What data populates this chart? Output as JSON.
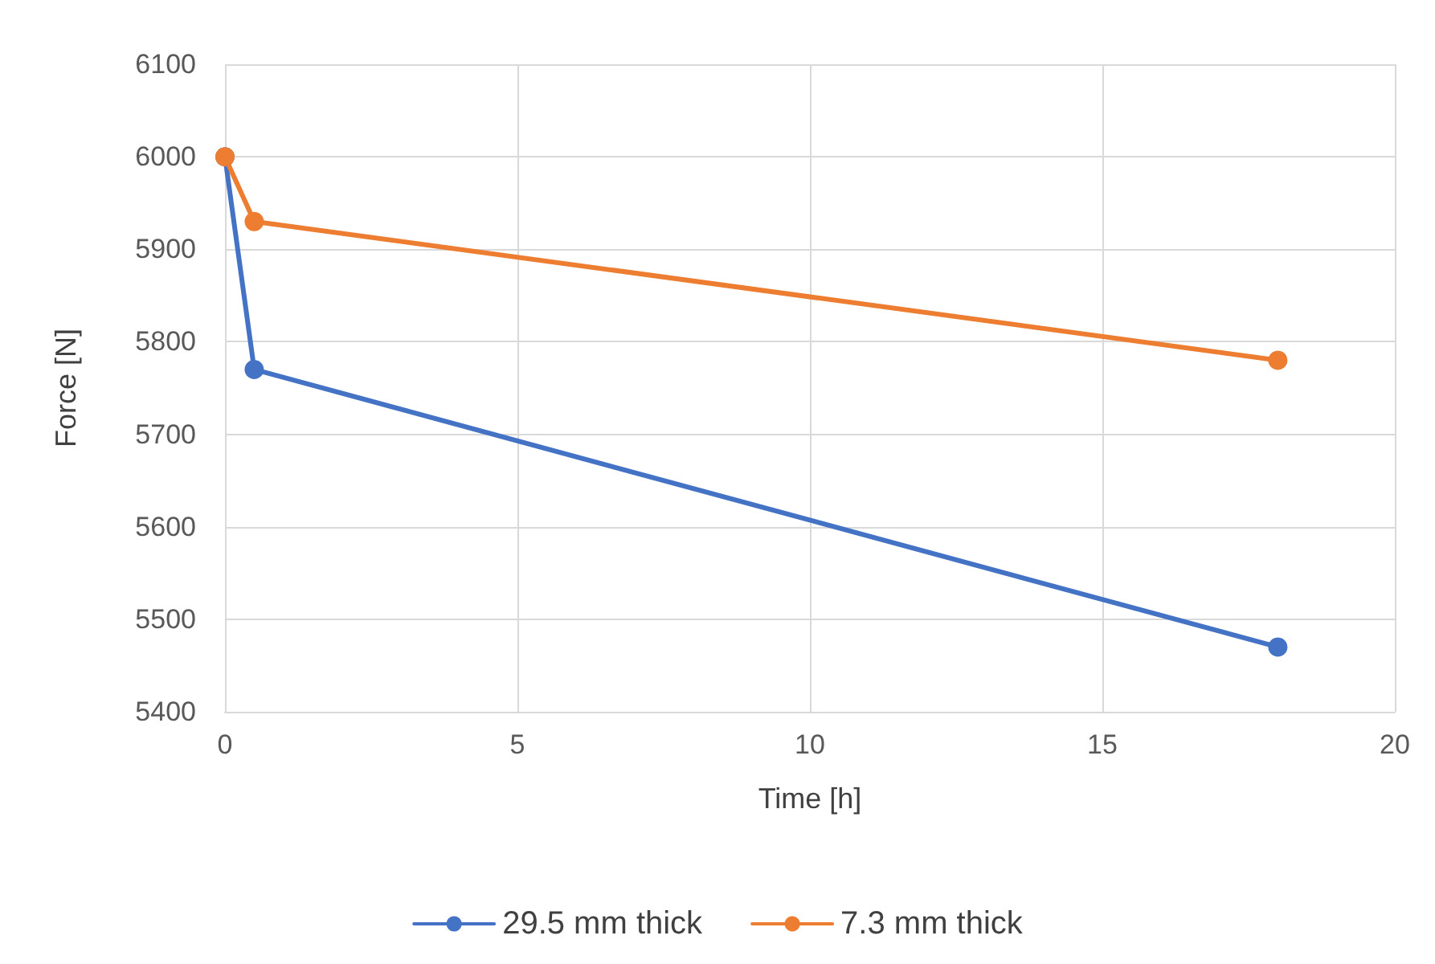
{
  "chart_data": {
    "type": "line",
    "xlabel": "Time [h]",
    "ylabel": "Force [N]",
    "series": [
      {
        "name": "29.5 mm thick",
        "color": "#4472c4",
        "x": [
          0,
          0.5,
          18
        ],
        "values": [
          6000,
          5770,
          5470
        ]
      },
      {
        "name": "7.3 mm thick",
        "color": "#ed7d31",
        "x": [
          0,
          0.5,
          18
        ],
        "values": [
          6000,
          5930,
          5780
        ]
      }
    ],
    "xlim": [
      0,
      20
    ],
    "xticks": [
      0,
      5,
      10,
      15,
      20
    ],
    "ylim": [
      5400,
      6100
    ],
    "yticks": [
      5400,
      5500,
      5600,
      5700,
      5800,
      5900,
      6000,
      6100
    ],
    "grid": true,
    "legend": "bottom",
    "marker": "circle",
    "line_style": "solid"
  }
}
